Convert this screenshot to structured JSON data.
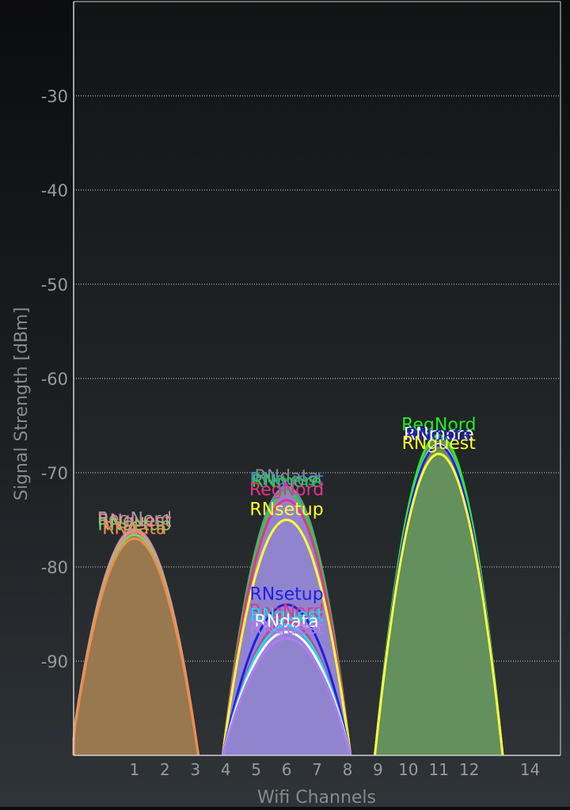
{
  "chart_data": {
    "type": "area",
    "xlabel": "Wifi Channels",
    "ylabel": "Signal Strength [dBm]",
    "xlim": [
      -1,
      15
    ],
    "ylim": [
      -100,
      -20
    ],
    "x_ticks": [
      {
        "label": "1",
        "value": 1
      },
      {
        "label": "2",
        "value": 2
      },
      {
        "label": "3",
        "value": 3
      },
      {
        "label": "4",
        "value": 4
      },
      {
        "label": "5",
        "value": 5
      },
      {
        "label": "6",
        "value": 6
      },
      {
        "label": "7",
        "value": 7
      },
      {
        "label": "8",
        "value": 8
      },
      {
        "label": "9",
        "value": 9
      },
      {
        "label": "10",
        "value": 10
      },
      {
        "label": "11",
        "value": 11
      },
      {
        "label": "12",
        "value": 12
      },
      {
        "label": "14",
        "value": 14
      }
    ],
    "y_ticks": [
      -30,
      -40,
      -50,
      -60,
      -70,
      -80,
      -90
    ],
    "grid": true,
    "series": [
      {
        "name": "RegNord",
        "channel": 1,
        "signal": -76,
        "color": "#9e9e9e"
      },
      {
        "name": "RNguest",
        "channel": 1,
        "signal": -76.2,
        "color": "#ff7fa0"
      },
      {
        "name": "RNsetup",
        "channel": 1,
        "signal": -76.6,
        "color": "#7ad26a"
      },
      {
        "name": "RNdata",
        "channel": 1,
        "signal": -77,
        "color": "#f28a4f"
      },
      {
        "name": "RNdata",
        "channel": 6,
        "signal": -71.5,
        "color": "#8a8a8a"
      },
      {
        "name": "RNguest",
        "channel": 6,
        "signal": -71.8,
        "color": "#4a86e8"
      },
      {
        "name": "RNmore",
        "channel": 6,
        "signal": -72,
        "color": "#2ed12e"
      },
      {
        "name": "RegNord",
        "channel": 6,
        "signal": -72.9,
        "color": "#e8318a"
      },
      {
        "name": "RNsetup",
        "channel": 6,
        "signal": -75,
        "color": "#ffff33"
      },
      {
        "name": "RNsetup",
        "channel": 6,
        "signal": -84,
        "color": "#1e1ee8"
      },
      {
        "name": "RegNord",
        "channel": 6,
        "signal": -85.8,
        "color": "#e8318a"
      },
      {
        "name": "RNguest",
        "channel": 6,
        "signal": -86.2,
        "color": "#00e5ee"
      },
      {
        "name": "RNdata",
        "channel": 6,
        "signal": -86.9,
        "color": "#ffffff"
      },
      {
        "name": "RNguest",
        "channel": 6,
        "signal": -87.6,
        "color": "#b07cf0"
      },
      {
        "name": "RegNord",
        "channel": 11,
        "signal": -66,
        "color": "#22ee22"
      },
      {
        "name": "RNmore",
        "channel": 11,
        "signal": -67,
        "color": "#ffffff"
      },
      {
        "name": "RNdata",
        "channel": 11,
        "signal": -67.1,
        "color": "#1e1ee8"
      },
      {
        "name": "RNguest",
        "channel": 11,
        "signal": -68,
        "color": "#ffff33"
      }
    ]
  },
  "theme": {
    "plot_bg_top": "#121314",
    "plot_bg_bottom": "#2e3235",
    "axis_color": "#d0d0d0",
    "grid_color": "#d8d8d8",
    "tick_label_color": "#9a9a9a",
    "axis_label_color": "#8a8a8a",
    "fill_channel_1": "#98784f",
    "fill_channel_6": "#9184cf",
    "fill_channel_11": "#63905c"
  }
}
